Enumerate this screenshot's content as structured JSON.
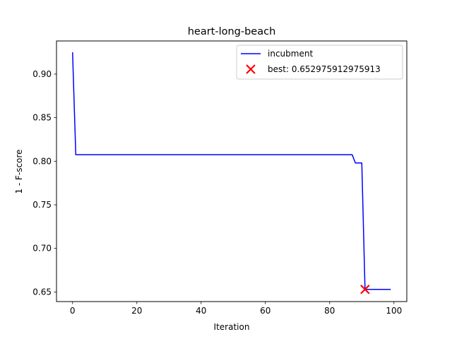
{
  "chart_data": {
    "type": "line",
    "title": "heart-long-beach",
    "xlabel": "Iteration",
    "ylabel": "1 - F-score",
    "xlim": [
      -5,
      104
    ],
    "ylim": [
      0.639,
      0.938
    ],
    "xticks": [
      0,
      20,
      40,
      60,
      80,
      100
    ],
    "yticks": [
      0.65,
      0.7,
      0.75,
      0.8,
      0.85,
      0.9
    ],
    "xtick_labels": [
      "0",
      "20",
      "40",
      "60",
      "80",
      "100"
    ],
    "ytick_labels": [
      "0.65",
      "0.70",
      "0.75",
      "0.80",
      "0.85",
      "0.90"
    ],
    "grid": false,
    "legend_position": "top-right",
    "series": [
      {
        "name": "incubment",
        "color": "#0000ff",
        "style": "step-line",
        "points": [
          [
            0,
            0.925
          ],
          [
            1,
            0.8075
          ],
          [
            87,
            0.8075
          ],
          [
            88,
            0.798
          ],
          [
            90,
            0.798
          ],
          [
            91,
            0.653
          ],
          [
            99,
            0.653
          ]
        ]
      }
    ],
    "best": {
      "label": "best: 0.652975912975913",
      "x": 91,
      "y": 0.652975912975913,
      "color": "#ff0000",
      "marker": "x"
    }
  }
}
